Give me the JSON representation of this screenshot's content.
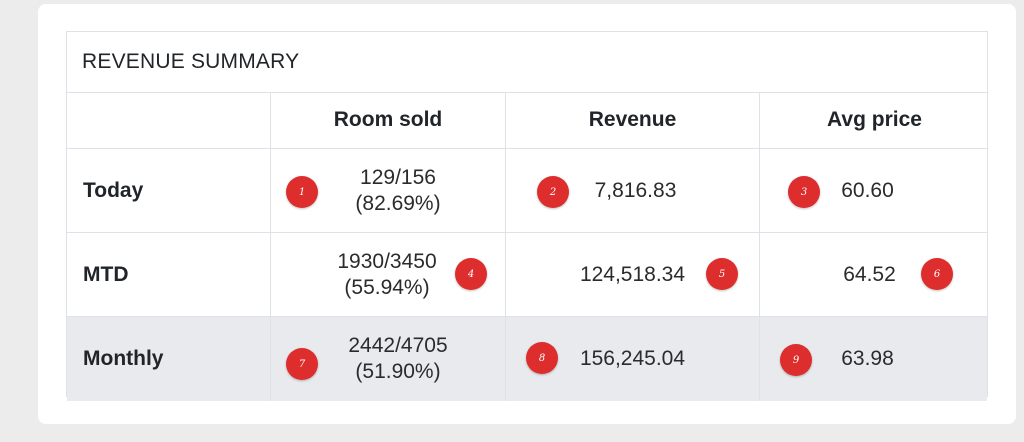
{
  "panel": {
    "title": "REVENUE SUMMARY"
  },
  "columns": [
    "",
    "Room sold",
    "Revenue",
    "Avg price"
  ],
  "rows": [
    {
      "label": "Today",
      "rooms": "129/156",
      "rooms_pct": "(82.69%)",
      "revenue": "7,816.83",
      "avg_price": "60.60"
    },
    {
      "label": "MTD",
      "rooms": "1930/3450",
      "rooms_pct": "(55.94%)",
      "revenue": "124,518.34",
      "avg_price": "64.52"
    },
    {
      "label": "Monthly",
      "rooms": "2442/4705",
      "rooms_pct": "(51.90%)",
      "revenue": "156,245.04",
      "avg_price": "63.98"
    }
  ],
  "markers": [
    "1",
    "2",
    "3",
    "4",
    "5",
    "6",
    "7",
    "8",
    "9"
  ],
  "colors": {
    "marker": "#dd2d2d",
    "highlight_row": "#e9eaee",
    "page_bg": "#ececec"
  }
}
